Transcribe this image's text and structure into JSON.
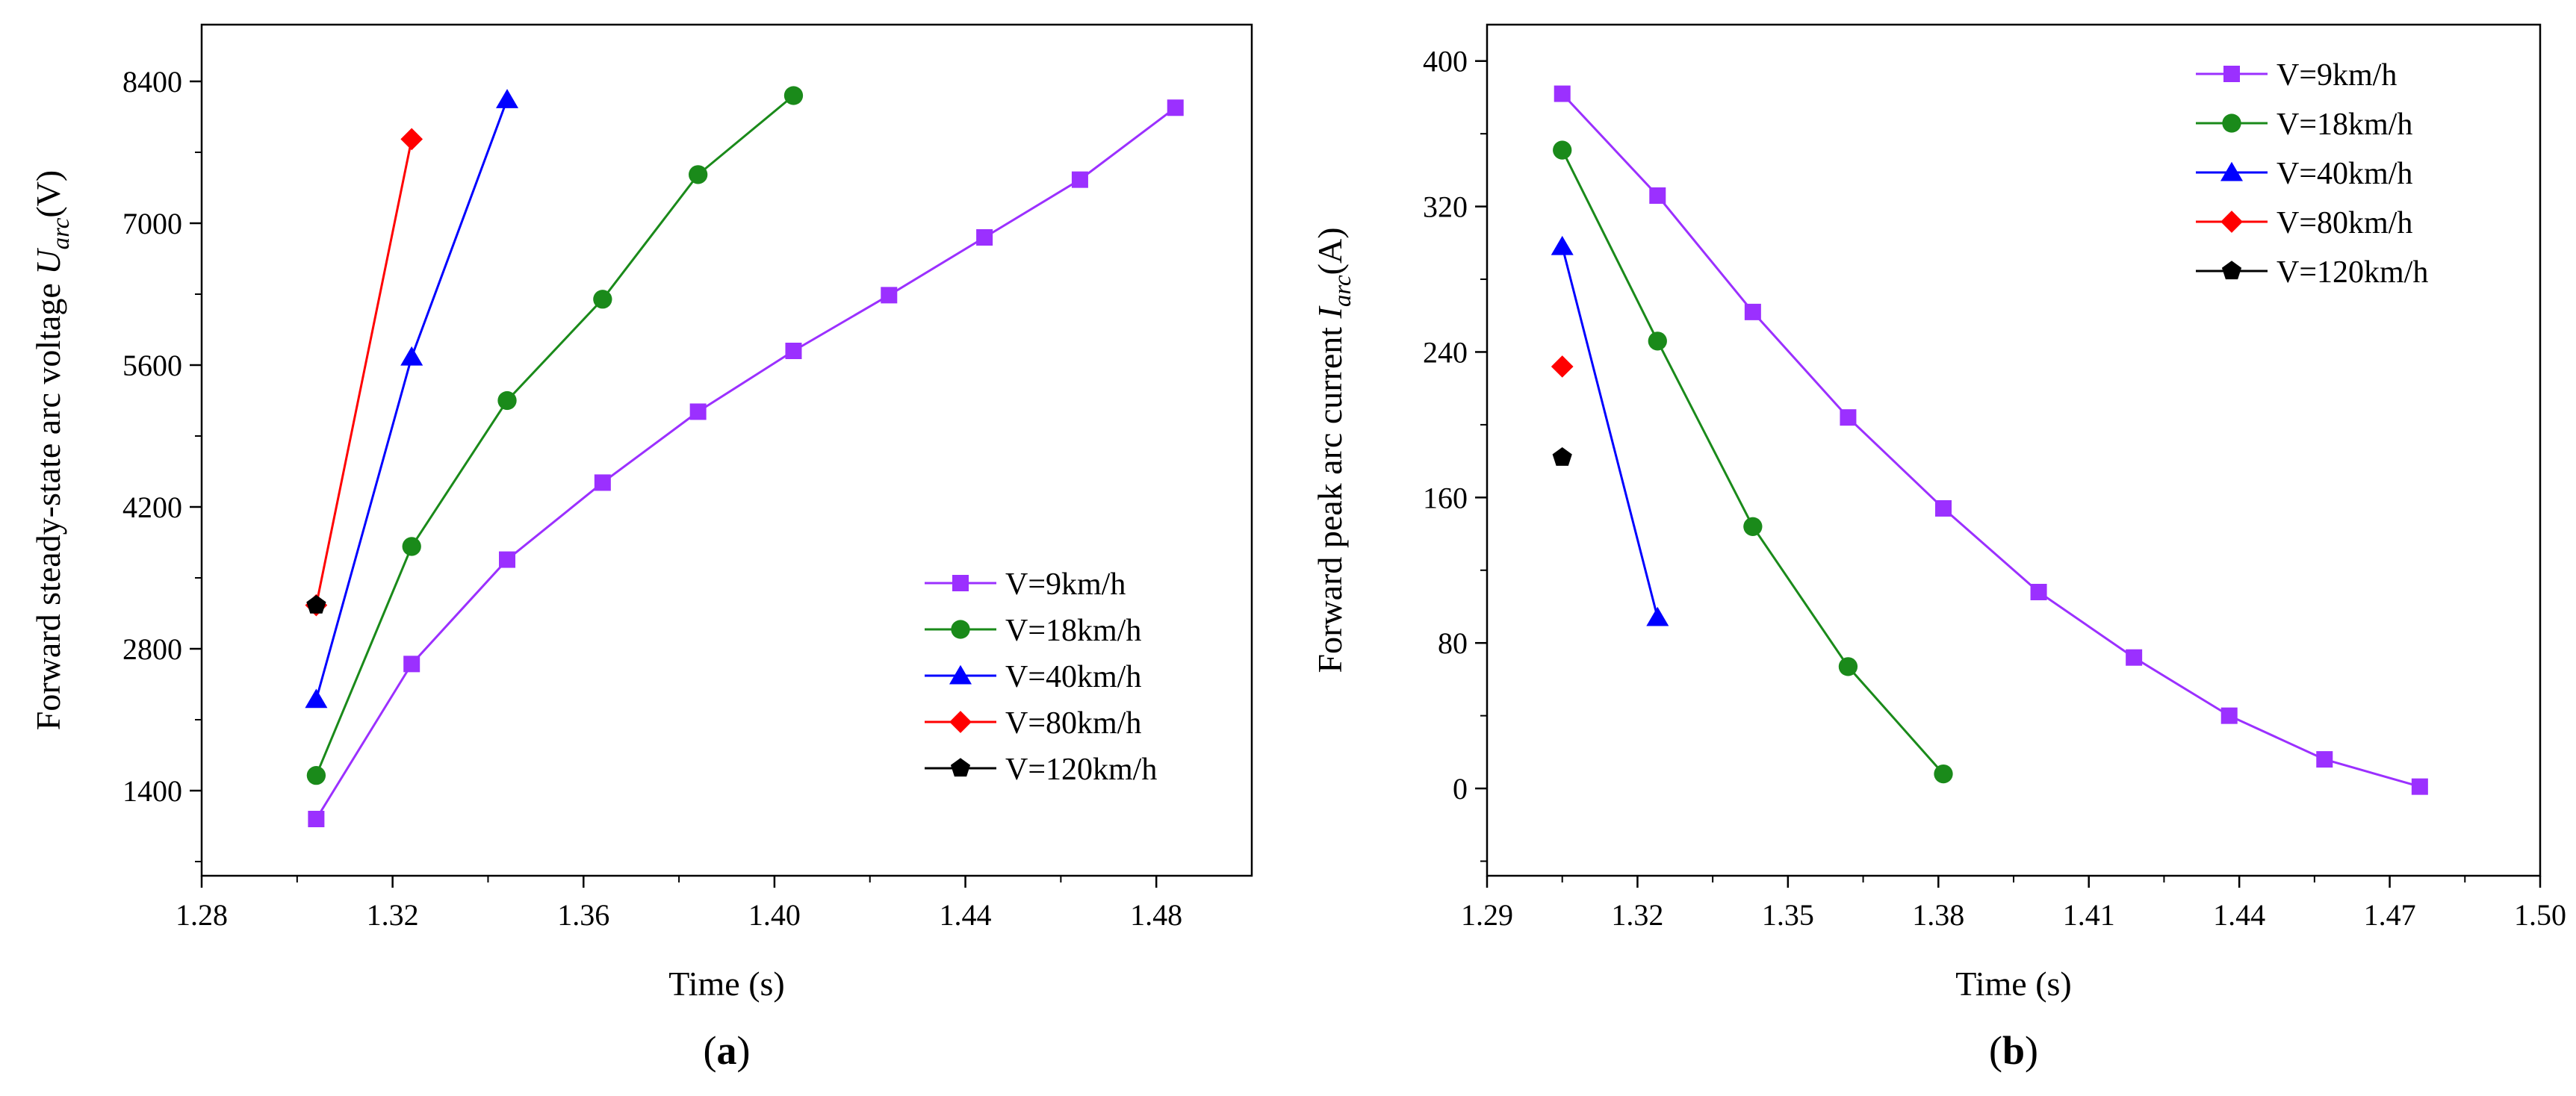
{
  "chart_data": [
    {
      "type": "line",
      "panel_label": "(a)",
      "panel_letter": "a",
      "xlabel": "Time (s)",
      "ylabel": "Forward steady-state arc voltage U_arc(V)",
      "ylabel_parts": {
        "text": "Forward steady-state arc voltage ",
        "symbol": "U",
        "subscript": "arc",
        "unit": "(V)"
      },
      "xlim": [
        1.28,
        1.5
      ],
      "ylim": [
        560,
        8960
      ],
      "xticks": [
        1.28,
        1.32,
        1.36,
        1.4,
        1.44,
        1.48
      ],
      "xtick_labels": [
        "1.28",
        "1.32",
        "1.36",
        "1.40",
        "1.44",
        "1.48"
      ],
      "yticks": [
        1400,
        2800,
        4200,
        5600,
        7000,
        8400
      ],
      "ytick_labels": [
        "1400",
        "2800",
        "4200",
        "5600",
        "7000",
        "8400"
      ],
      "grid": false,
      "legend_position": "bottom-right",
      "series": [
        {
          "name": "V=9km/h",
          "color": "#9b30ff",
          "marker": "square",
          "x": [
            1.304,
            1.324,
            1.344,
            1.364,
            1.384,
            1.404,
            1.424,
            1.444,
            1.464,
            1.484
          ],
          "y": [
            1120,
            2650,
            3680,
            4440,
            5140,
            5740,
            6290,
            6860,
            7430,
            8140
          ]
        },
        {
          "name": "V=18km/h",
          "color": "#1a8a1a",
          "marker": "circle",
          "x": [
            1.304,
            1.324,
            1.344,
            1.364,
            1.384,
            1.404
          ],
          "y": [
            1550,
            3810,
            5250,
            6250,
            7480,
            8260
          ]
        },
        {
          "name": "V=40km/h",
          "color": "#0000ff",
          "marker": "triangle",
          "x": [
            1.304,
            1.324,
            1.344
          ],
          "y": [
            2300,
            5680,
            8220
          ]
        },
        {
          "name": "V=80km/h",
          "color": "#ff0000",
          "marker": "diamond",
          "x": [
            1.304,
            1.324
          ],
          "y": [
            3230,
            7830
          ]
        },
        {
          "name": "V=120km/h",
          "color": "#000000",
          "marker": "pentagon",
          "x": [
            1.304
          ],
          "y": [
            3230
          ]
        }
      ]
    },
    {
      "type": "line",
      "panel_label": "(b)",
      "panel_letter": "b",
      "xlabel": "Time (s)",
      "ylabel": "Forward peak arc current I_arc(A)",
      "ylabel_parts": {
        "text": "Forward peak arc current ",
        "symbol": "I",
        "subscript": "arc",
        "unit": "(A)"
      },
      "xlim": [
        1.29,
        1.5
      ],
      "ylim": [
        -48,
        420
      ],
      "xticks": [
        1.29,
        1.32,
        1.35,
        1.38,
        1.41,
        1.44,
        1.47,
        1.5
      ],
      "xtick_labels": [
        "1.29",
        "1.32",
        "1.35",
        "1.38",
        "1.41",
        "1.44",
        "1.47",
        "1.50"
      ],
      "yticks": [
        0,
        80,
        160,
        240,
        320,
        400
      ],
      "ytick_labels": [
        "0",
        "80",
        "160",
        "240",
        "320",
        "400"
      ],
      "grid": false,
      "legend_position": "top-right",
      "series": [
        {
          "name": "V=9km/h",
          "color": "#9b30ff",
          "marker": "square",
          "x": [
            1.305,
            1.324,
            1.343,
            1.362,
            1.381,
            1.4,
            1.419,
            1.438,
            1.457,
            1.476
          ],
          "y": [
            382,
            326,
            262,
            204,
            154,
            108,
            72,
            40,
            16,
            1
          ]
        },
        {
          "name": "V=18km/h",
          "color": "#1a8a1a",
          "marker": "circle",
          "x": [
            1.305,
            1.324,
            1.343,
            1.362,
            1.381
          ],
          "y": [
            351,
            246,
            144,
            67,
            8
          ]
        },
        {
          "name": "V=40km/h",
          "color": "#0000ff",
          "marker": "triangle",
          "x": [
            1.305,
            1.324
          ],
          "y": [
            298,
            94
          ]
        },
        {
          "name": "V=80km/h",
          "color": "#ff0000",
          "marker": "diamond",
          "x": [
            1.305
          ],
          "y": [
            232
          ]
        },
        {
          "name": "V=120km/h",
          "color": "#000000",
          "marker": "pentagon",
          "x": [
            1.305
          ],
          "y": [
            182
          ]
        }
      ]
    }
  ]
}
